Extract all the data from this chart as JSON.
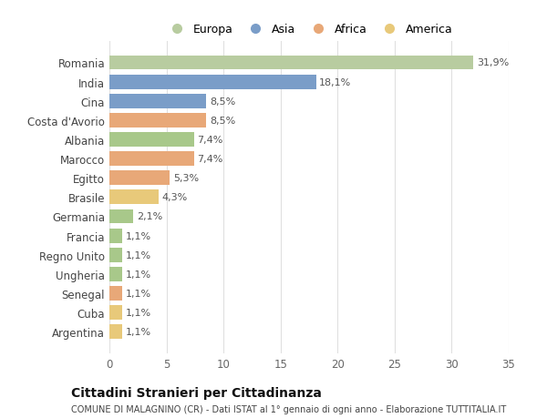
{
  "countries": [
    "Argentina",
    "Cuba",
    "Senegal",
    "Ungheria",
    "Regno Unito",
    "Francia",
    "Germania",
    "Brasile",
    "Egitto",
    "Marocco",
    "Albania",
    "Costa d'Avorio",
    "Cina",
    "India",
    "Romania"
  ],
  "values": [
    1.1,
    1.1,
    1.1,
    1.1,
    1.1,
    1.1,
    2.1,
    4.3,
    5.3,
    7.4,
    7.4,
    8.5,
    8.5,
    18.1,
    31.9
  ],
  "labels": [
    "1,1%",
    "1,1%",
    "1,1%",
    "1,1%",
    "1,1%",
    "1,1%",
    "2,1%",
    "4,3%",
    "5,3%",
    "7,4%",
    "7,4%",
    "8,5%",
    "8,5%",
    "18,1%",
    "31,9%"
  ],
  "colors": [
    "#e8c97a",
    "#e8c97a",
    "#e8a878",
    "#a8c88a",
    "#a8c88a",
    "#a8c88a",
    "#a8c88a",
    "#e8c97a",
    "#e8a878",
    "#e8a878",
    "#a8c88a",
    "#e8a878",
    "#7a9dc8",
    "#7a9dc8",
    "#b8cca0"
  ],
  "legend_labels": [
    "Europa",
    "Asia",
    "Africa",
    "America"
  ],
  "legend_colors": [
    "#b8cca0",
    "#7a9dc8",
    "#e8a878",
    "#e8c97a"
  ],
  "title": "Cittadini Stranieri per Cittadinanza",
  "subtitle": "COMUNE DI MALAGNINO (CR) - Dati ISTAT al 1° gennaio di ogni anno - Elaborazione TUTTITALIA.IT",
  "xlim": [
    0,
    35
  ],
  "xticks": [
    0,
    5,
    10,
    15,
    20,
    25,
    30,
    35
  ],
  "background_color": "#ffffff",
  "bar_background": "#ffffff",
  "grid_color": "#e0e0e0"
}
